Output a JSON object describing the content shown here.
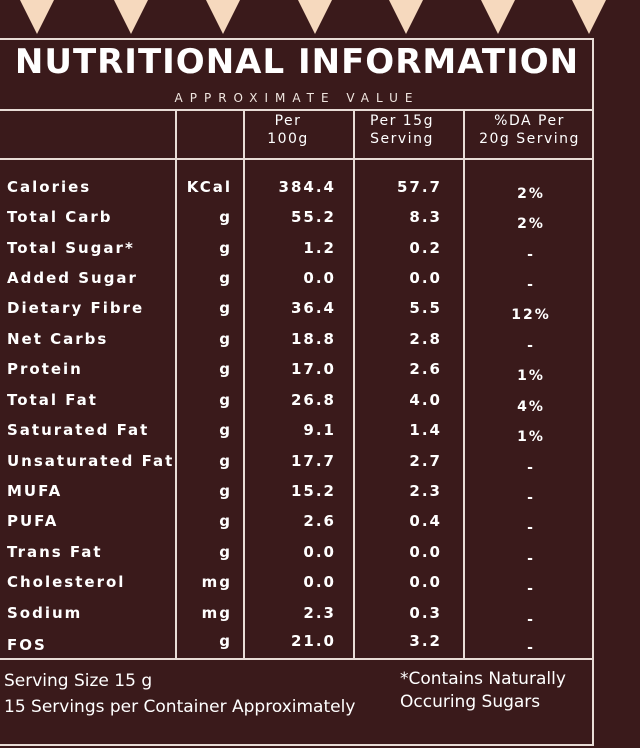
{
  "header": {
    "title": "NUTRITIONAL INFORMATION",
    "subtitle": "APPROXIMATE VALUE"
  },
  "columns": {
    "per100_line1": "Per",
    "per100_line2": "100g",
    "per15_line1": "Per 15g",
    "per15_line2": "Serving",
    "da_line1": "%DA Per",
    "da_line2": "20g Serving"
  },
  "rows": [
    {
      "name": "Calories",
      "unit": "KCal",
      "per100": "384.4",
      "per15": "57.7",
      "da": "2%"
    },
    {
      "name": "Total Carb",
      "unit": "g",
      "per100": "55.2",
      "per15": "8.3",
      "da": "2%"
    },
    {
      "name": "Total Sugar*",
      "unit": "g",
      "per100": "1.2",
      "per15": "0.2",
      "da": "-"
    },
    {
      "name": "Added Sugar",
      "unit": "g",
      "per100": "0.0",
      "per15": "0.0",
      "da": "-"
    },
    {
      "name": "Dietary Fibre",
      "unit": "g",
      "per100": "36.4",
      "per15": "5.5",
      "da": "12%"
    },
    {
      "name": "Net Carbs",
      "unit": "g",
      "per100": "18.8",
      "per15": "2.8",
      "da": "-"
    },
    {
      "name": "Protein",
      "unit": "g",
      "per100": "17.0",
      "per15": "2.6",
      "da": "1%"
    },
    {
      "name": "Total Fat",
      "unit": "g",
      "per100": "26.8",
      "per15": "4.0",
      "da": "4%"
    },
    {
      "name": "Saturated Fat",
      "unit": "g",
      "per100": "9.1",
      "per15": "1.4",
      "da": "1%"
    },
    {
      "name": "Unsaturated Fat",
      "unit": "g",
      "per100": "17.7",
      "per15": "2.7",
      "da": "-"
    },
    {
      "name": "MUFA",
      "unit": "g",
      "per100": "15.2",
      "per15": "2.3",
      "da": "-"
    },
    {
      "name": "PUFA",
      "unit": "g",
      "per100": "2.6",
      "per15": "0.4",
      "da": "-"
    },
    {
      "name": "Trans Fat",
      "unit": "g",
      "per100": "0.0",
      "per15": "0.0",
      "da": "-"
    },
    {
      "name": "Cholesterol",
      "unit": "mg",
      "per100": "0.0",
      "per15": "0.0",
      "da": "-"
    },
    {
      "name": "Sodium",
      "unit": "mg",
      "per100": "2.3",
      "per15": "0.3",
      "da": "-"
    },
    {
      "name": "FOS",
      "unit": "g",
      "per100": "21.0",
      "per15": "3.2",
      "da": "-"
    }
  ],
  "footer": {
    "serving_size": "Serving Size 15 g",
    "servings_per_container": "15 Servings per Container Approximately",
    "note_line1": "*Contains Naturally",
    "note_line2": "Occuring Sugars"
  },
  "colors": {
    "background": "#3a1a1b",
    "triangle": "#f6d9be",
    "rule": "#e8dcd6"
  }
}
